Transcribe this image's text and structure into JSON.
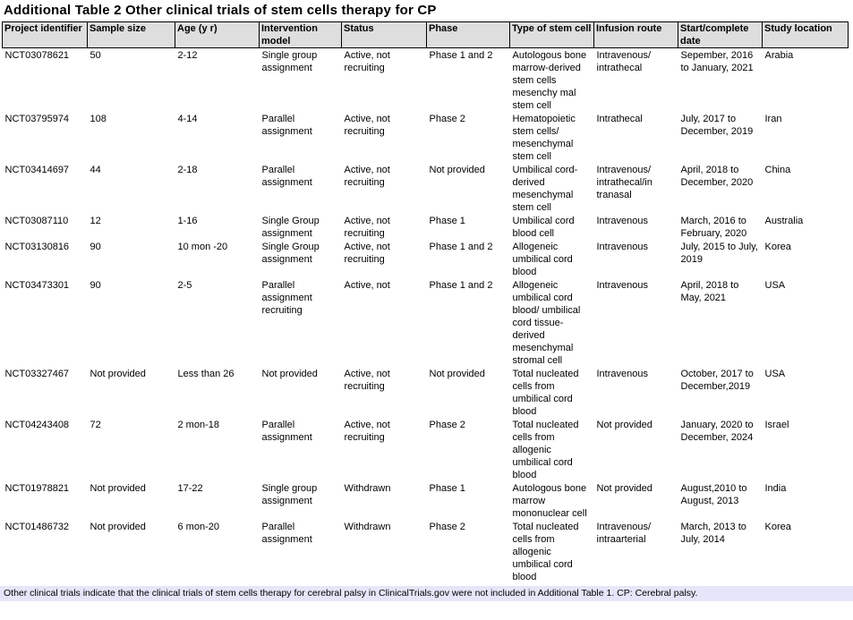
{
  "page": {
    "title": "Additional Table 2 Other clinical trials of stem cells therapy for CP",
    "footnote": "Other clinical trials indicate that the clinical trials of stem cells therapy for cerebral palsy in ClinicalTrials.gov were not included in Additional Table 1. CP: Cerebral palsy."
  },
  "colors": {
    "header_background": "#dedede",
    "table_border": "#000000",
    "footnote_background": "#e6e6fa",
    "text": "#000000"
  },
  "table": {
    "columns": [
      {
        "key": "project_identifier",
        "label": "Project identifier"
      },
      {
        "key": "sample_size",
        "label": "Sample size"
      },
      {
        "key": "age",
        "label": "Age (y r)"
      },
      {
        "key": "intervention_model",
        "label": "Intervention model"
      },
      {
        "key": "status",
        "label": "Status"
      },
      {
        "key": "phase",
        "label": "Phase"
      },
      {
        "key": "stem_cell_type",
        "label": "Type of stem cell"
      },
      {
        "key": "infusion_route",
        "label": "Infusion route"
      },
      {
        "key": "dates",
        "label": "Start/complete date"
      },
      {
        "key": "location",
        "label": "Study location"
      }
    ],
    "rows": [
      [
        "NCT03078621",
        "50",
        "2-12",
        "Single group assignment",
        "Active, not recruiting",
        "Phase 1 and 2",
        "Autologous bone marrow-derived stem cells mesenchy mal stem cell",
        "Intravenous/ intrathecal",
        "Sepember, 2016 to January, 2021",
        "Arabia"
      ],
      [
        "NCT03795974",
        "108",
        "4-14",
        "Parallel assignment",
        "Active, not recruiting",
        "Phase 2",
        "Hematopoietic stem cells/ mesenchymal stem cell",
        "Intrathecal",
        "July, 2017 to December, 2019",
        "Iran"
      ],
      [
        "NCT03414697",
        "44",
        "2-18",
        "Parallel assignment",
        "Active, not recruiting",
        "Not provided",
        "Umbilical cord-derived mesenchymal stem cell",
        "Intravenous/ intrathecal/in tranasal",
        "April, 2018 to December, 2020",
        "China"
      ],
      [
        "NCT03087110",
        "12",
        "1-16",
        "Single Group assignment",
        "Active, not recruiting",
        "Phase 1",
        "Umbilical cord blood cell",
        "Intravenous",
        "March, 2016 to February, 2020",
        "Australia"
      ],
      [
        "NCT03130816",
        "90",
        "10 mon -20",
        "Single Group assignment",
        "Active, not recruiting",
        "Phase 1 and 2",
        "Allogeneic umbilical cord blood",
        "Intravenous",
        "July, 2015 to July, 2019",
        "Korea"
      ],
      [
        "NCT03473301",
        "90",
        "2-5",
        "Parallel assignment recruiting",
        "Active, not",
        "Phase 1 and 2",
        "Allogeneic umbilical cord blood/ umbilical cord tissue-derived mesenchymal stromal cell",
        "Intravenous",
        "April, 2018 to May, 2021",
        "USA"
      ],
      [
        "NCT03327467",
        "Not provided",
        "Less than 26",
        "Not provided",
        "Active, not recruiting",
        "Not provided",
        "Total nucleated cells from umbilical cord blood",
        "Intravenous",
        "October, 2017 to December,2019",
        "USA"
      ],
      [
        "NCT04243408",
        "72",
        "2 mon-18",
        "Parallel assignment",
        "Active, not recruiting",
        "Phase 2",
        "Total nucleated cells from allogenic umbilical cord blood",
        "Not provided",
        "January, 2020 to December, 2024",
        "Israel"
      ],
      [
        "NCT01978821",
        "Not provided",
        "17-22",
        "Single group assignment",
        "Withdrawn",
        "Phase 1",
        "Autologous bone marrow mononuclear cell",
        "Not provided",
        "August,2010 to August, 2013",
        "India"
      ],
      [
        "NCT01486732",
        "Not provided",
        "6 mon-20",
        "Parallel assignment",
        "Withdrawn",
        "Phase 2",
        "Total nucleated cells from allogenic umbilical cord blood",
        "Intravenous/ intraarterial",
        "March, 2013 to July, 2014",
        "Korea"
      ]
    ]
  }
}
